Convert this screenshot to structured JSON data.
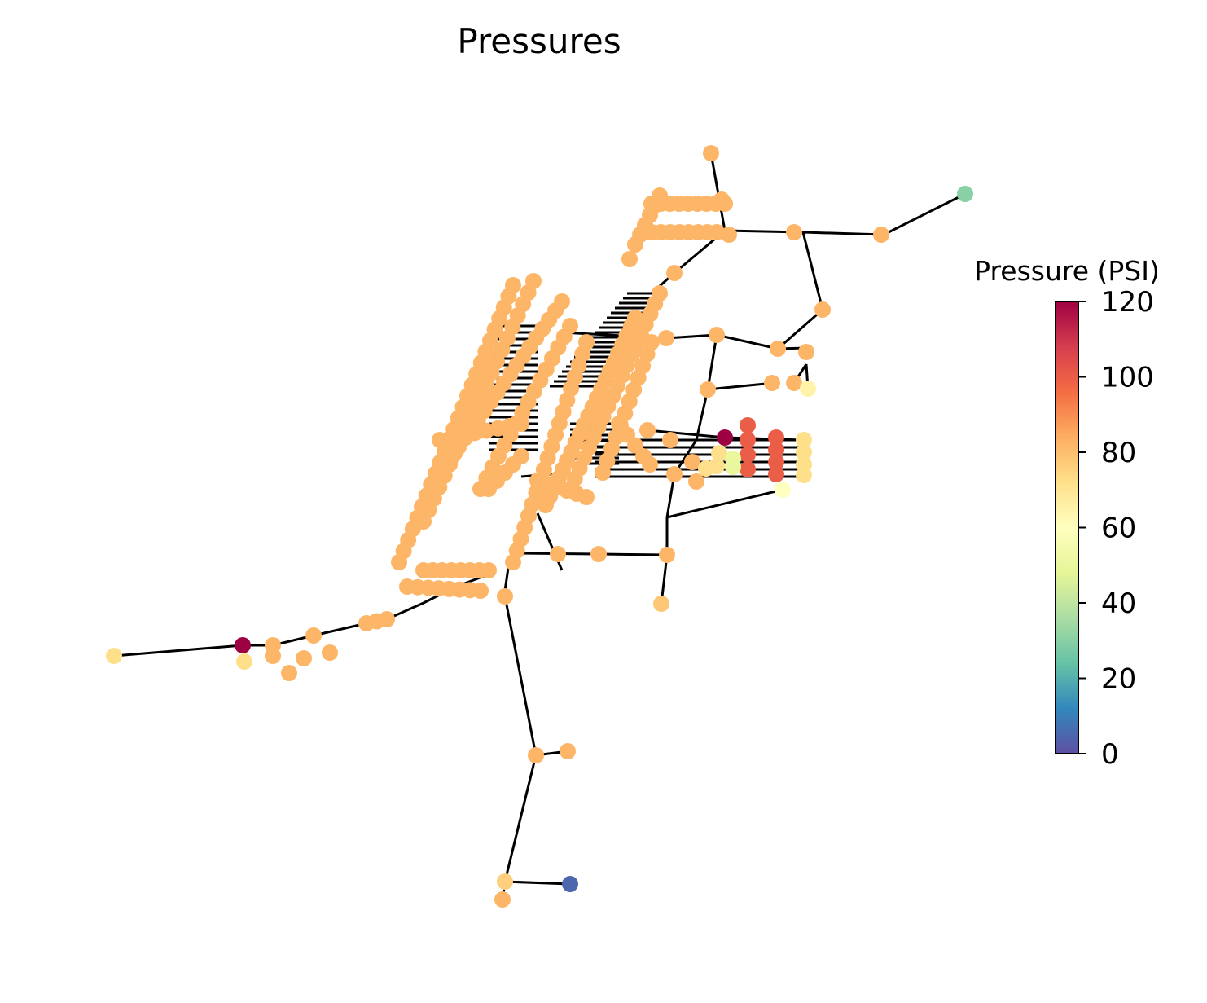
{
  "title": "Pressures",
  "colorbar": {
    "label": "Pressure (PSI)",
    "colormap": "Spectral_r",
    "range": [
      0,
      120
    ],
    "ticks": [
      0,
      20,
      40,
      60,
      80,
      100,
      120
    ]
  },
  "network": {
    "edge_color": "#000000",
    "node_pressures": {
      "majority_trunk_and_mains": 82,
      "reservoir_or_tank_low": 5,
      "northeast_end_node": 30,
      "high_pressure_nodes": 120,
      "far_west_end_node": 72
    }
  }
}
